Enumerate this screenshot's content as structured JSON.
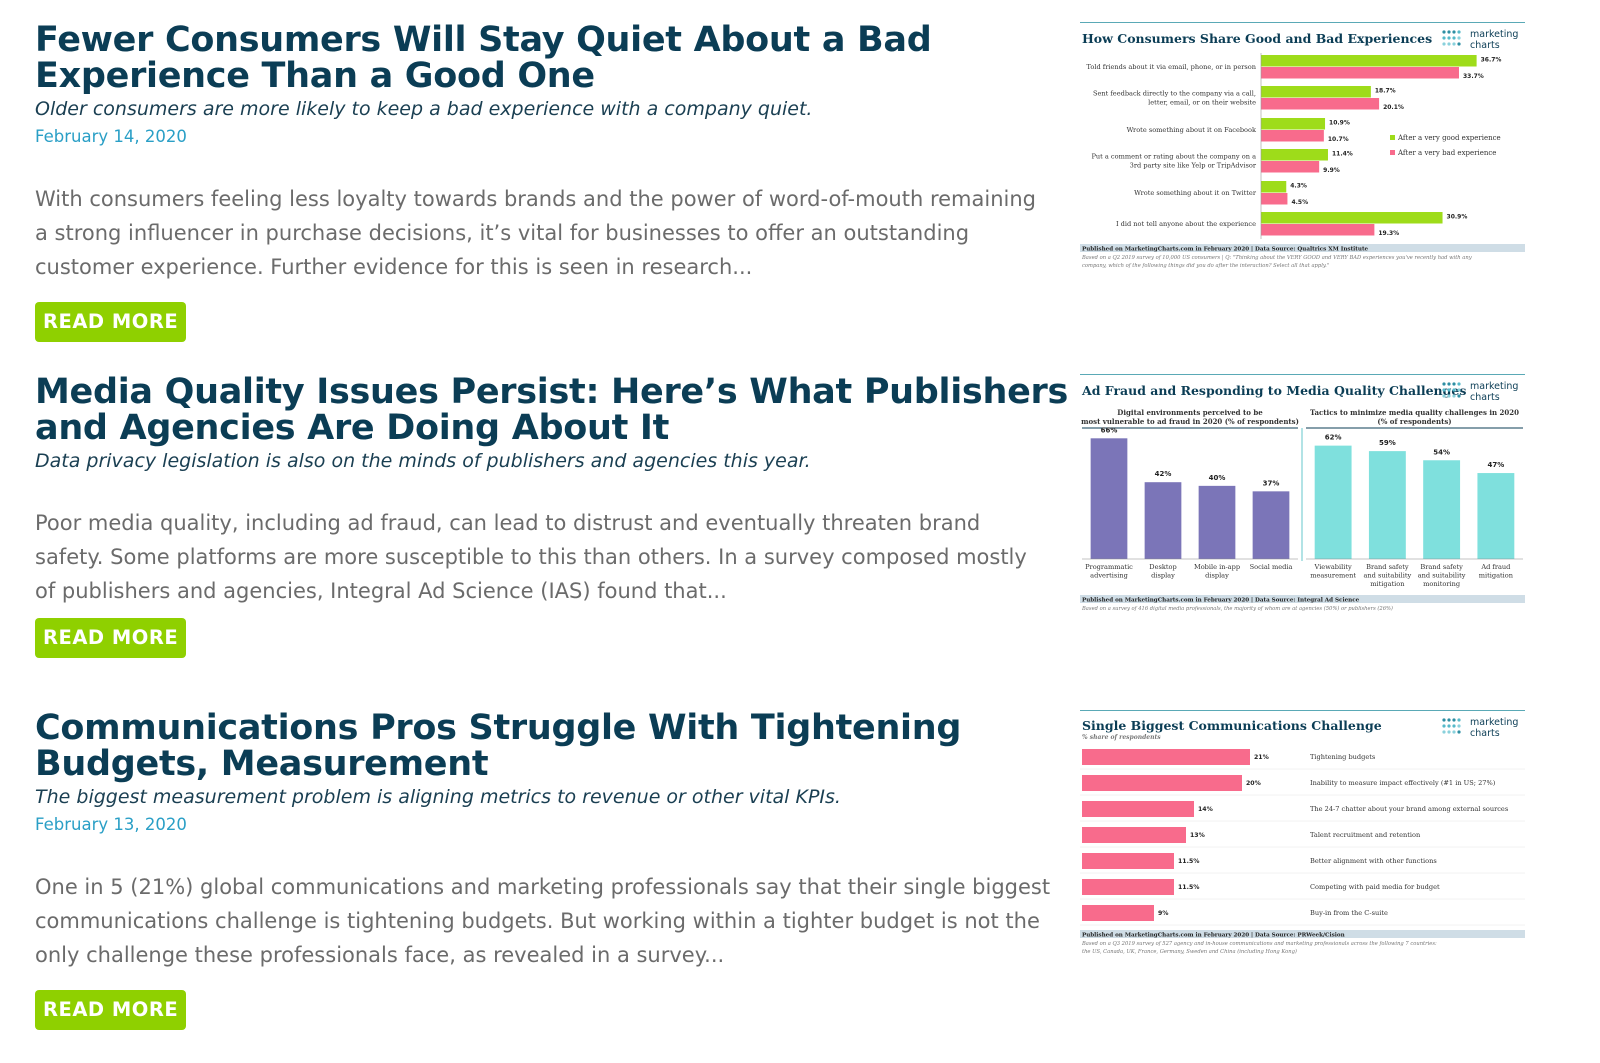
{
  "articles": [
    {
      "title_line1": "Fewer Consumers Will Stay Quiet About a Bad",
      "title_line2": "Experience Than a Good One",
      "subtitle": "Older consumers are more likely to keep a bad experience with a company quiet.",
      "date": "February 14, 2020",
      "excerpt_lines": [
        "With consumers feeling less loyalty towards brands and the power of word-of-mouth remaining",
        "a strong influencer in purchase decisions, it’s vital for businesses to offer an outstanding",
        "customer experience. Further evidence for this is seen in research..."
      ],
      "read_more": "READ MORE"
    },
    {
      "title_line1": "Media Quality Issues Persist: Here’s What Publishers",
      "title_line2": "and Agencies Are Doing About It",
      "subtitle": "Data privacy legislation is also on the minds of publishers and agencies this year.",
      "excerpt_lines": [
        "Poor media quality, including ad fraud, can lead to distrust and eventually threaten brand",
        "safety. Some platforms are more susceptible to this than others. In a survey composed mostly",
        "of publishers and agencies, Integral Ad Science (IAS) found that..."
      ],
      "read_more": "READ MORE"
    },
    {
      "title_line1": "Communications Pros Struggle With Tightening",
      "title_line2": "Budgets, Measurement",
      "subtitle": "The biggest measurement problem is aligning metrics to revenue or other vital KPIs.",
      "date": "February 13, 2020",
      "excerpt_lines": [
        "One in 5 (21%) global communications and marketing professionals say that their single biggest",
        "communications challenge is tightening budgets. But working within a tighter budget is not the",
        "only challenge these professionals face, as revealed in a survey..."
      ],
      "read_more": "READ MORE"
    }
  ],
  "logo": {
    "line1": "marketing",
    "line2": "charts"
  },
  "colors": {
    "green": "#9edc1a",
    "pink": "#f86b8c",
    "purple": "#7b75b8",
    "cyan": "#7fe0dd",
    "navy": "#0b3d55",
    "button": "#8fd000"
  },
  "chart_data": [
    {
      "type": "bar",
      "orientation": "horizontal",
      "title": "How Consumers Share Good and Bad Experiences",
      "categories": [
        [
          "Told friends about it via email, phone, or in person"
        ],
        [
          "Sent feedback directly to the company via a call,",
          "letter, email, or on their website"
        ],
        [
          "Wrote something about it on Facebook"
        ],
        [
          "Put a comment or rating about the company on a",
          "3rd party site like Yelp or TripAdvisor"
        ],
        [
          "Wrote something about it on Twitter"
        ],
        [
          "I did not tell anyone about the experience"
        ]
      ],
      "series": [
        {
          "name": "After a very good experience",
          "color": "#9edc1a",
          "values": [
            36.7,
            18.7,
            10.9,
            11.4,
            4.3,
            30.9
          ]
        },
        {
          "name": "After a very bad experience",
          "color": "#f86b8c",
          "values": [
            33.7,
            20.1,
            10.7,
            9.9,
            4.5,
            19.3
          ]
        }
      ],
      "value_labels": [
        [
          "36.7%",
          "18.7%",
          "10.9%",
          "11.4%",
          "4.3%",
          "30.9%"
        ],
        [
          "33.7%",
          "20.1%",
          "10.7%",
          "9.9%",
          "4.5%",
          "19.3%"
        ]
      ],
      "xlim": [
        0,
        40
      ],
      "published": "Published on MarketingCharts.com in February 2020 | Data Source: Qualtrics XM Institute",
      "note_lines": [
        "Based on a Q2 2019 survey of 10,000 US consumers | Q: \"Thinking about the VERY GOOD and VERY BAD experiences you've recently had with any",
        "company, which of the following things did you do after the interaction? Select all that apply.\""
      ]
    },
    {
      "type": "bar",
      "title": "Ad Fraud and Responding to Media Quality Challenges",
      "panels": [
        {
          "heading_lines": [
            "Digital environments perceived to be",
            "most vulnerable to ad fraud in 2020 (% of respondents)"
          ],
          "color": "#7b75b8",
          "categories": [
            [
              "Programmatic",
              "advertising"
            ],
            [
              "Desktop",
              "display"
            ],
            [
              "Mobile in-app",
              "display"
            ],
            [
              "Social media"
            ]
          ],
          "values": [
            66,
            42,
            40,
            37
          ],
          "value_labels": [
            "66%",
            "42%",
            "40%",
            "37%"
          ]
        },
        {
          "heading_lines": [
            "Tactics to minimize media quality challenges in 2020",
            "(% of respondents)"
          ],
          "color": "#7fe0dd",
          "categories": [
            [
              "Viewability",
              "measurement"
            ],
            [
              "Brand safety",
              "and suitability",
              "mitigation"
            ],
            [
              "Brand safety",
              "and suitability",
              "monitoring"
            ],
            [
              "Ad fraud",
              "mitigation"
            ]
          ],
          "values": [
            62,
            59,
            54,
            47
          ],
          "value_labels": [
            "62%",
            "59%",
            "54%",
            "47%"
          ]
        }
      ],
      "ylim": [
        0,
        70
      ],
      "published": "Published on MarketingCharts.com in February 2020 | Data Source: Integral Ad Science",
      "note_lines": [
        "Based on a survey of 416 digital media professionals, the majority of whom are at agencies (50%) or publishers (26%)"
      ]
    },
    {
      "type": "bar",
      "orientation": "horizontal",
      "title": "Single Biggest Communications Challenge",
      "subtitle": "% share of respondents",
      "color": "#f86b8c",
      "categories": [
        "Tightening budgets",
        "Inability to measure impact effectively (#1 in US; 27%)",
        "The 24-7 chatter about your brand among external sources",
        "Talent recruitment and retention",
        "Better alignment with other functions",
        "Competing with paid media for budget",
        "Buy-in from the C-suite"
      ],
      "values": [
        21,
        20,
        14,
        13,
        11.5,
        11.5,
        9
      ],
      "value_labels": [
        "21%",
        "20%",
        "14%",
        "13%",
        "11.5%",
        "11.5%",
        "9%"
      ],
      "xlim": [
        0,
        25
      ],
      "published": "Published on MarketingCharts.com in February 2020 | Data Source: PRWeek/Cision",
      "note_lines": [
        "Based on a Q3 2019 survey of 527 agency and in-house communications and marketing professionals across the following 7 countries:",
        "the US, Canada, UK, France, Germany, Sweden and China (including Hong Kong)"
      ]
    }
  ]
}
